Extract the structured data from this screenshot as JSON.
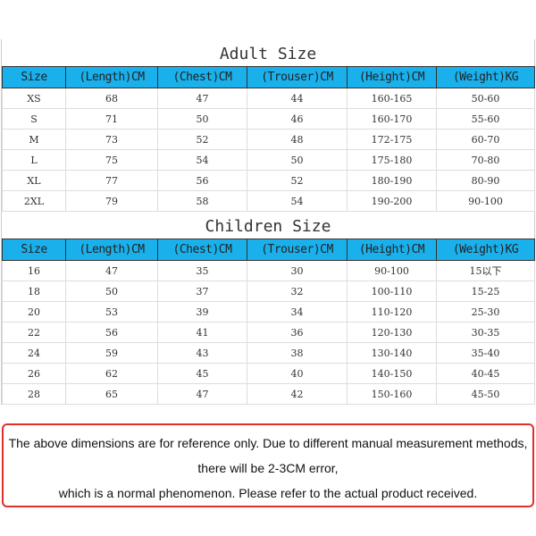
{
  "columns": [
    "Size",
    "(Length)CM",
    "(Chest)CM",
    "(Trouser)CM",
    "(Height)CM",
    "(Weight)KG"
  ],
  "adult": {
    "title": "Adult Size",
    "rows": [
      [
        "XS",
        "68",
        "47",
        "44",
        "160-165",
        "50-60"
      ],
      [
        "S",
        "71",
        "50",
        "46",
        "160-170",
        "55-60"
      ],
      [
        "M",
        "73",
        "52",
        "48",
        "172-175",
        "60-70"
      ],
      [
        "L",
        "75",
        "54",
        "50",
        "175-180",
        "70-80"
      ],
      [
        "XL",
        "77",
        "56",
        "52",
        "180-190",
        "80-90"
      ],
      [
        "2XL",
        "79",
        "58",
        "54",
        "190-200",
        "90-100"
      ]
    ]
  },
  "children": {
    "title": "Children Size",
    "rows": [
      [
        "16",
        "47",
        "35",
        "30",
        "90-100",
        "15以下"
      ],
      [
        "18",
        "50",
        "37",
        "32",
        "100-110",
        "15-25"
      ],
      [
        "20",
        "53",
        "39",
        "34",
        "110-120",
        "25-30"
      ],
      [
        "22",
        "56",
        "41",
        "36",
        "120-130",
        "30-35"
      ],
      [
        "24",
        "59",
        "43",
        "38",
        "130-140",
        "35-40"
      ],
      [
        "26",
        "62",
        "45",
        "40",
        "140-150",
        "40-45"
      ],
      [
        "28",
        "65",
        "47",
        "42",
        "150-160",
        "45-50"
      ]
    ]
  },
  "note": [
    "The above dimensions are for reference only. Due to different manual measurement methods,",
    "there will be 2-3CM error,",
    "which is a normal phenomenon. Please refer to the actual product received."
  ],
  "colors": {
    "header": "#1ab0ec",
    "note_border": "#e0302a"
  }
}
